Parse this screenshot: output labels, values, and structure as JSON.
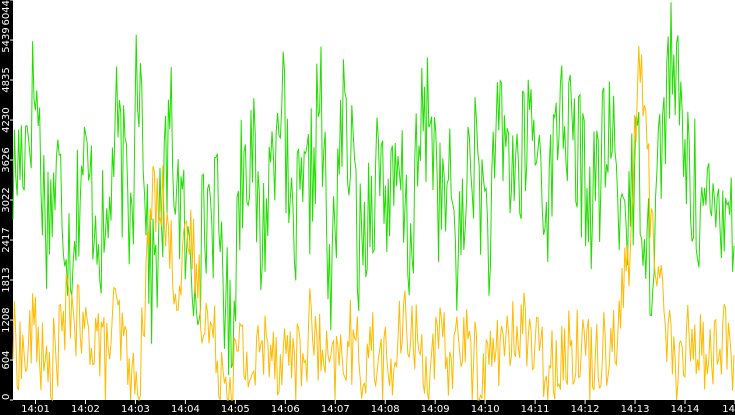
{
  "chart_data": {
    "type": "line",
    "title": "",
    "xlabel": "",
    "ylabel": "",
    "ylim": [
      0,
      6044
    ],
    "y_ticks": [
      0,
      604,
      1208,
      1813,
      2417,
      3022,
      3626,
      4230,
      4835,
      5439,
      6044
    ],
    "y_tick_labels": [
      "0",
      "604",
      "1208",
      "1813",
      "2417",
      "3022",
      "3626",
      "4230",
      "4835",
      "5439",
      "6044"
    ],
    "x_range_minutes": [
      0.55,
      15.0
    ],
    "x_ticks": [
      1,
      2,
      3,
      4,
      5,
      6,
      7,
      8,
      9,
      10,
      11,
      12,
      13,
      14,
      15
    ],
    "x_tick_labels": [
      "14:01",
      "14:02",
      "14:03",
      "14:04",
      "14:05",
      "14:06",
      "14:07",
      "14:08",
      "14:09",
      "14:10",
      "14:11",
      "14:12",
      "14:13",
      "14:14",
      "14"
    ],
    "background": "#000000",
    "plot_background": "#ffffff",
    "grid": false,
    "legend": "none",
    "series": [
      {
        "color": "#22dd00",
        "x": [
          0.55,
          0.8,
          1.0,
          1.2,
          1.45,
          1.7,
          1.95,
          2.2,
          2.4,
          2.6,
          2.8,
          2.95,
          3.0,
          3.15,
          3.3,
          3.5,
          3.7,
          3.9,
          4.1,
          4.3,
          4.5,
          4.7,
          4.9,
          5.1,
          5.3,
          5.5,
          5.7,
          5.9,
          6.1,
          6.3,
          6.5,
          6.7,
          6.9,
          7.1,
          7.3,
          7.5,
          7.7,
          7.9,
          8.1,
          8.3,
          8.5,
          8.7,
          8.9,
          9.1,
          9.3,
          9.5,
          9.7,
          9.9,
          10.1,
          10.3,
          10.5,
          10.7,
          10.9,
          11.1,
          11.3,
          11.5,
          11.7,
          11.9,
          12.1,
          12.3,
          12.5,
          12.7,
          12.9,
          13.1,
          13.3,
          13.5,
          13.7,
          13.9,
          14.1,
          14.3,
          14.5,
          14.7,
          14.9,
          15.0
        ],
        "values": [
          3300,
          4000,
          4800,
          2700,
          3400,
          2300,
          3600,
          2900,
          2200,
          4100,
          3200,
          2600,
          5700,
          4300,
          1700,
          2600,
          4100,
          2900,
          1800,
          2300,
          3100,
          2500,
          800,
          3400,
          4100,
          2300,
          3400,
          5000,
          2400,
          2800,
          3200,
          4700,
          1300,
          4300,
          3700,
          2200,
          3100,
          3700,
          2800,
          3300,
          2300,
          3900,
          4500,
          2900,
          3100,
          2100,
          3900,
          3300,
          2400,
          4300,
          3600,
          3400,
          4300,
          3500,
          3000,
          4700,
          3900,
          3600,
          3000,
          3400,
          4100,
          2900,
          3100,
          3500,
          2100,
          3700,
          5200,
          4300,
          3300,
          3000,
          2600,
          3100,
          3400,
          1200
        ]
      },
      {
        "color": "#ffbb00",
        "x": [
          0.55,
          0.8,
          1.0,
          1.2,
          1.45,
          1.7,
          1.95,
          2.2,
          2.4,
          2.6,
          2.8,
          2.95,
          3.0,
          3.15,
          3.3,
          3.5,
          3.7,
          3.9,
          4.1,
          4.3,
          4.5,
          4.7,
          4.9,
          5.1,
          5.3,
          5.5,
          5.7,
          5.9,
          6.1,
          6.3,
          6.5,
          6.7,
          6.9,
          7.1,
          7.3,
          7.5,
          7.7,
          7.9,
          8.1,
          8.3,
          8.5,
          8.7,
          8.9,
          9.1,
          9.3,
          9.5,
          9.7,
          9.9,
          10.1,
          10.3,
          10.5,
          10.7,
          10.9,
          11.1,
          11.3,
          11.5,
          11.7,
          11.9,
          12.1,
          12.3,
          12.5,
          12.7,
          12.9,
          13.1,
          13.3,
          13.5,
          13.7,
          13.9,
          14.1,
          14.3,
          14.5,
          14.7,
          14.9,
          15.0
        ],
        "values": [
          900,
          600,
          1200,
          300,
          800,
          1500,
          900,
          1100,
          600,
          1300,
          700,
          200,
          0,
          900,
          2900,
          3300,
          2200,
          1700,
          2500,
          1600,
          1000,
          600,
          300,
          800,
          400,
          700,
          1000,
          600,
          800,
          500,
          1100,
          700,
          300,
          600,
          900,
          500,
          800,
          600,
          400,
          900,
          1200,
          700,
          500,
          800,
          600,
          1000,
          700,
          400,
          600,
          900,
          700,
          1300,
          900,
          600,
          500,
          800,
          700,
          1000,
          600,
          800,
          900,
          1300,
          2300,
          5400,
          2900,
          1800,
          900,
          300,
          1100,
          800,
          600,
          1000,
          700,
          500
        ]
      }
    ]
  }
}
